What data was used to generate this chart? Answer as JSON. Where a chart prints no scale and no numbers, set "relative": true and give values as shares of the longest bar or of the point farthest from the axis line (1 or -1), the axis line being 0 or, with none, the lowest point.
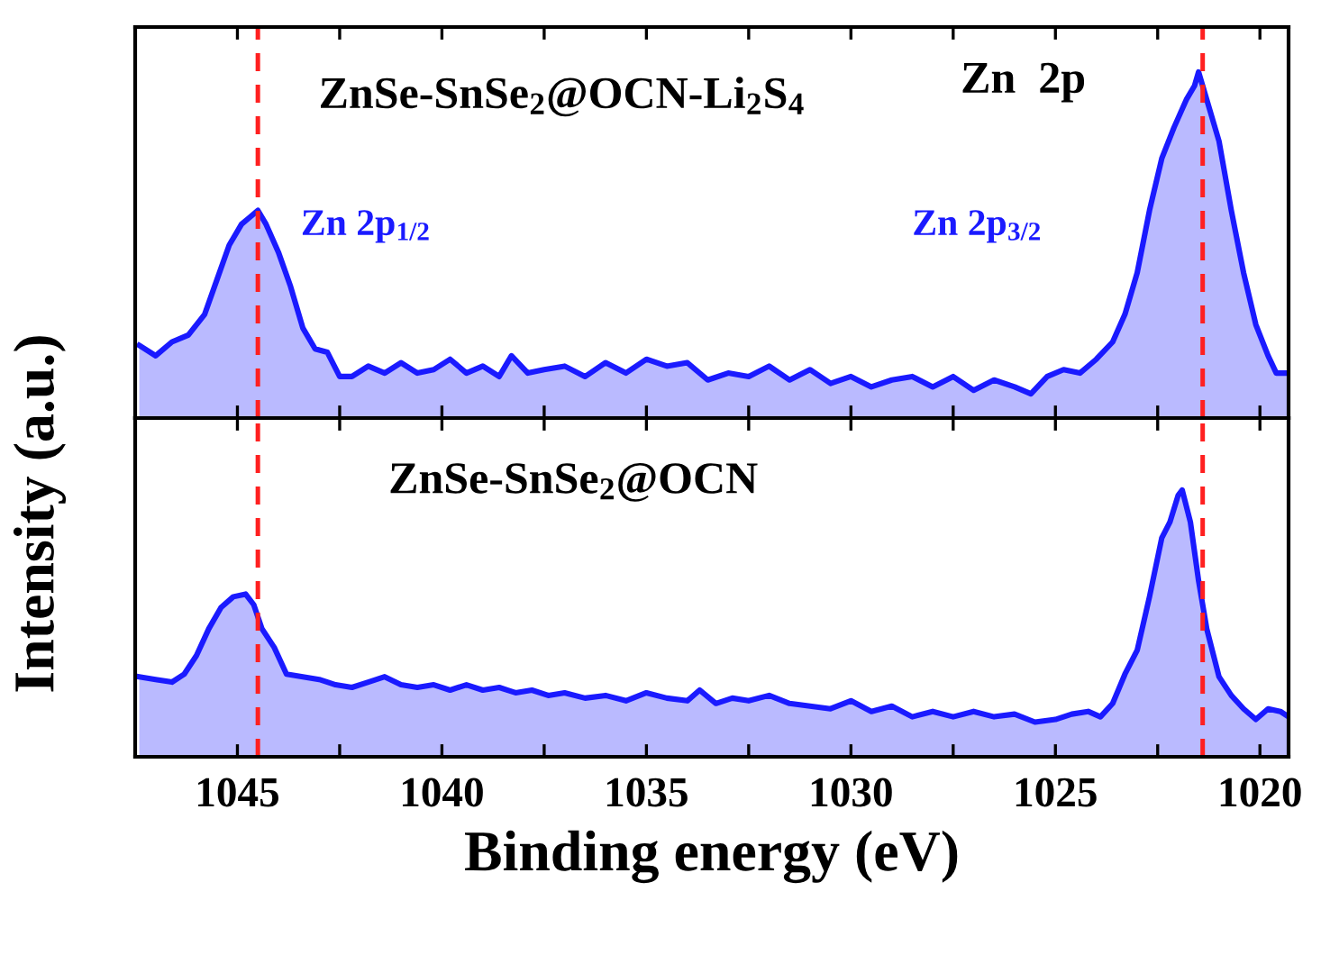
{
  "chart_data": [
    {
      "type": "area",
      "relative": true,
      "tick_labels": false,
      "ylabel": "Intensity (a.u.)",
      "xlim": [
        1047.5,
        1019.3
      ],
      "xticks": [
        {
          "value": 1045,
          "label": null
        },
        {
          "value": 1042.5,
          "label": null
        },
        {
          "value": 1040,
          "label": null
        },
        {
          "value": 1037.5,
          "label": null
        },
        {
          "value": 1035,
          "label": null
        },
        {
          "value": 1032.5,
          "label": null
        },
        {
          "value": 1030,
          "label": null
        },
        {
          "value": 1027.5,
          "label": null
        },
        {
          "value": 1025,
          "label": null
        },
        {
          "value": 1022.5,
          "label": null
        },
        {
          "value": 1020,
          "label": null
        }
      ],
      "annotations": [
        "ZnSe-SnSe$_{2}$@OCN-Li$_{2}$S$_{4}$",
        "Zn  2p",
        "Zn 2p$_{1/2}$",
        "Zn 2p$_{3/2}$"
      ],
      "ref_lines": [
        {
          "axis": "x",
          "value": 1044.5,
          "color": "#ff2020",
          "line_style": "dashed"
        },
        {
          "axis": "x",
          "value": 1021.4,
          "color": "#ff2020",
          "line_style": "dashed"
        }
      ],
      "series": [
        {
          "color": "#1a1aff",
          "x": [
            1047.4,
            1047.0,
            1046.6,
            1046.2,
            1045.8,
            1045.5,
            1045.2,
            1044.9,
            1044.7,
            1044.5,
            1044.3,
            1044.0,
            1043.7,
            1043.4,
            1043.1,
            1042.8,
            1042.5,
            1042.2,
            1041.8,
            1041.4,
            1041.0,
            1040.6,
            1040.2,
            1039.8,
            1039.4,
            1039.0,
            1038.6,
            1038.3,
            1037.9,
            1037.5,
            1037.0,
            1036.5,
            1036.0,
            1035.5,
            1035.0,
            1034.5,
            1034.0,
            1033.5,
            1033.0,
            1032.5,
            1032.0,
            1031.5,
            1031.0,
            1030.5,
            1030.0,
            1029.5,
            1029.0,
            1028.5,
            1028.0,
            1027.5,
            1027.0,
            1026.5,
            1026.0,
            1025.6,
            1025.2,
            1024.8,
            1024.4,
            1024.0,
            1023.6,
            1023.3,
            1023.0,
            1022.7,
            1022.4,
            1022.1,
            1021.8,
            1021.6,
            1021.5,
            1021.3,
            1021.0,
            1020.7,
            1020.4,
            1020.1,
            1019.8,
            1019.6,
            1019.3
          ],
          "values": [
            0.21,
            0.18,
            0.22,
            0.24,
            0.3,
            0.4,
            0.5,
            0.56,
            0.58,
            0.6,
            0.56,
            0.48,
            0.38,
            0.26,
            0.2,
            0.19,
            0.12,
            0.12,
            0.15,
            0.13,
            0.16,
            0.13,
            0.14,
            0.17,
            0.13,
            0.15,
            0.12,
            0.18,
            0.13,
            0.14,
            0.15,
            0.12,
            0.16,
            0.13,
            0.17,
            0.15,
            0.16,
            0.11,
            0.13,
            0.12,
            0.15,
            0.11,
            0.14,
            0.1,
            0.12,
            0.09,
            0.11,
            0.12,
            0.09,
            0.12,
            0.08,
            0.11,
            0.09,
            0.07,
            0.12,
            0.14,
            0.13,
            0.17,
            0.22,
            0.3,
            0.42,
            0.6,
            0.75,
            0.84,
            0.92,
            0.96,
            1.0,
            0.92,
            0.8,
            0.6,
            0.42,
            0.27,
            0.18,
            0.13,
            0.13
          ]
        }
      ]
    },
    {
      "type": "area",
      "relative": true,
      "tick_labels": "x",
      "xlabel": "Binding energy (eV)",
      "xlim": [
        1047.5,
        1019.3
      ],
      "xticks": [
        1045,
        {
          "value": 1042.5,
          "label": null
        },
        1040,
        {
          "value": 1037.5,
          "label": null
        },
        1035,
        {
          "value": 1032.5,
          "label": null
        },
        1030,
        {
          "value": 1027.5,
          "label": null
        },
        1025,
        {
          "value": 1022.5,
          "label": null
        },
        1020
      ],
      "annotations": [
        "ZnSe-SnSe$_{2}$@OCN"
      ],
      "ref_lines": [
        {
          "axis": "x",
          "value": 1044.5,
          "color": "#ff2020",
          "line_style": "dashed"
        },
        {
          "axis": "x",
          "value": 1021.4,
          "color": "#ff2020",
          "line_style": "dashed"
        }
      ],
      "series": [
        {
          "color": "#1a1aff",
          "x": [
            1047.4,
            1047.0,
            1046.6,
            1046.3,
            1046.0,
            1045.7,
            1045.4,
            1045.1,
            1044.8,
            1044.6,
            1044.4,
            1044.1,
            1043.8,
            1043.4,
            1043.0,
            1042.6,
            1042.2,
            1041.8,
            1041.4,
            1041.0,
            1040.6,
            1040.2,
            1039.8,
            1039.4,
            1039.0,
            1038.6,
            1038.2,
            1037.8,
            1037.4,
            1037.0,
            1036.5,
            1036.0,
            1035.5,
            1035.0,
            1034.5,
            1034.0,
            1033.7,
            1033.3,
            1032.9,
            1032.5,
            1032.0,
            1031.5,
            1031.0,
            1030.5,
            1030.0,
            1029.5,
            1029.0,
            1028.5,
            1028.0,
            1027.5,
            1027.0,
            1026.5,
            1026.0,
            1025.5,
            1025.0,
            1024.6,
            1024.2,
            1023.9,
            1023.6,
            1023.3,
            1023.0,
            1022.7,
            1022.4,
            1022.2,
            1022.0,
            1021.9,
            1021.7,
            1021.5,
            1021.3,
            1021.0,
            1020.7,
            1020.4,
            1020.1,
            1019.8,
            1019.5,
            1019.3
          ],
          "values": [
            0.3,
            0.29,
            0.28,
            0.31,
            0.38,
            0.48,
            0.56,
            0.6,
            0.61,
            0.57,
            0.48,
            0.41,
            0.31,
            0.3,
            0.29,
            0.27,
            0.26,
            0.28,
            0.3,
            0.27,
            0.26,
            0.27,
            0.25,
            0.27,
            0.25,
            0.26,
            0.24,
            0.25,
            0.23,
            0.24,
            0.22,
            0.23,
            0.21,
            0.24,
            0.22,
            0.21,
            0.25,
            0.2,
            0.22,
            0.21,
            0.23,
            0.2,
            0.19,
            0.18,
            0.21,
            0.17,
            0.19,
            0.15,
            0.17,
            0.15,
            0.17,
            0.15,
            0.16,
            0.13,
            0.14,
            0.16,
            0.17,
            0.15,
            0.2,
            0.31,
            0.4,
            0.6,
            0.82,
            0.88,
            0.98,
            1.0,
            0.88,
            0.66,
            0.48,
            0.3,
            0.23,
            0.18,
            0.14,
            0.18,
            0.17,
            0.15
          ]
        }
      ]
    }
  ]
}
